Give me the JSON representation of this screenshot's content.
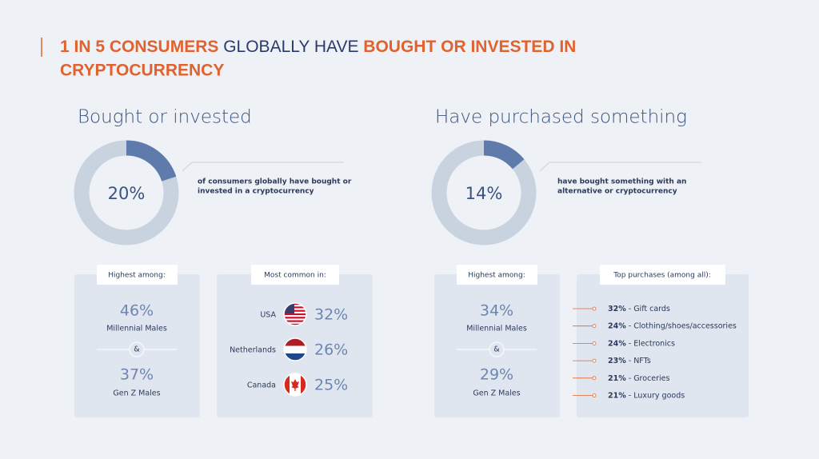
{
  "header": {
    "title_parts": [
      "1 IN 5 CONSUMERS",
      " GLOBALLY HAVE ",
      "BOUGHT OR INVESTED IN",
      "CRYPTOCURRENCY"
    ]
  },
  "panels": [
    {
      "title": "Bought or invested",
      "donut": {
        "value": 20,
        "label": "20%"
      },
      "caption": [
        "of consumers globally have bought or",
        "invested in a cryptocurrency"
      ],
      "highest": {
        "label": "Highest among:",
        "separator": "&",
        "items": [
          {
            "value": "46%",
            "label": "Millennial Males"
          },
          {
            "value": "37%",
            "label": "Gen Z Males"
          }
        ]
      },
      "common": {
        "label": "Most common in:",
        "rows": [
          {
            "country": "USA",
            "value": "32%"
          },
          {
            "country": "Netherlands",
            "value": "26%"
          },
          {
            "country": "Canada",
            "value": "25%"
          }
        ]
      }
    },
    {
      "title": "Have purchased something",
      "donut": {
        "value": 14,
        "label": "14%"
      },
      "caption": [
        "have bought something with an",
        "alternative or cryptocurrency"
      ],
      "highest": {
        "label": "Highest among:",
        "separator": "&",
        "items": [
          {
            "value": "34%",
            "label": "Millennial Males"
          },
          {
            "value": "29%",
            "label": "Gen Z Males"
          }
        ]
      },
      "purchases": {
        "label": "Top purchases (among all):",
        "items": [
          {
            "value": "32%",
            "label": "- Gift cards"
          },
          {
            "value": "24%",
            "label": "- Clothing/shoes/accessories"
          },
          {
            "value": "24%",
            "label": "- Electronics"
          },
          {
            "value": "23%",
            "label": "- NFTs"
          },
          {
            "value": "21%",
            "label": "- Groceries"
          },
          {
            "value": "21%",
            "label": "- Luxury goods"
          }
        ]
      }
    }
  ]
}
